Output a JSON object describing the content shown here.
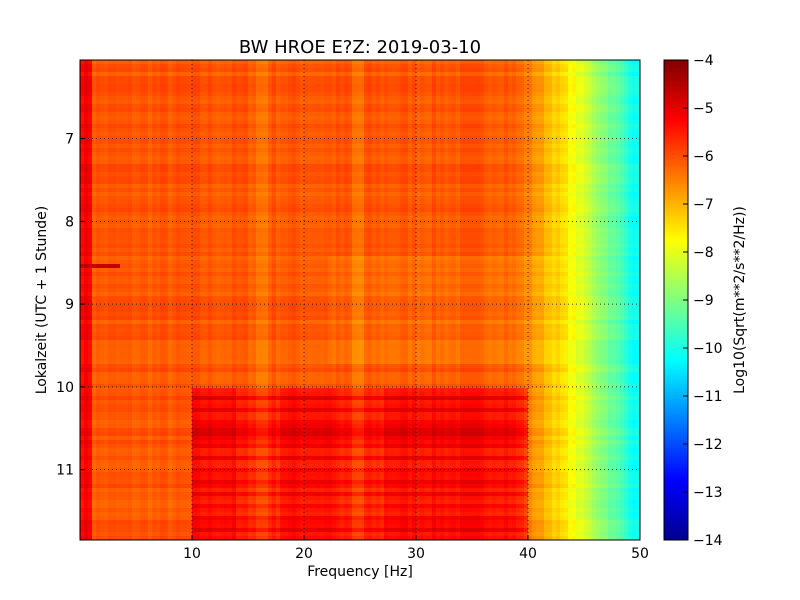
{
  "chart_data": {
    "type": "heatmap",
    "title": "BW HROE E?Z: 2019-03-10",
    "xlabel": "Frequency [Hz]",
    "ylabel": "Lokalzeit (UTC + 1 Stunde)",
    "xlim": [
      0,
      50
    ],
    "ylim": [
      6.05,
      11.85
    ],
    "y_inverted": true,
    "x_ticks": [
      "10",
      "20",
      "30",
      "40",
      "50"
    ],
    "y_ticks": [
      "7",
      "8",
      "9",
      "10",
      "11"
    ],
    "grid": "dotted",
    "colormap": "jet",
    "colorbar": {
      "label": "Log10(Sqrt(m**2/s**2/Hz))",
      "range": [
        -14,
        -4
      ],
      "ticks": [
        "-4",
        "-5",
        "-6",
        "-7",
        "-8",
        "-9",
        "-10",
        "-11",
        "-12",
        "-13",
        "-14"
      ]
    },
    "model": {
      "base_level": -6.1,
      "low_freq_edge": {
        "below_hz": 1.0,
        "level": -5.2
      },
      "rolloff": {
        "start_hz": 38,
        "end_hz": 50,
        "end_level": -10.3
      },
      "active_period": {
        "from_hour": 10.0,
        "to_hour": 11.85,
        "level": -5.4
      },
      "quiet_band": {
        "from_hour": 10.45,
        "to_hour": 10.65
      },
      "bright_spots": [
        {
          "hour": 8.55,
          "hz_from": 0,
          "hz_to": 3.5,
          "level": -4.7
        }
      ],
      "resonance_lines_hz": [
        16.3,
        24.8
      ]
    }
  }
}
